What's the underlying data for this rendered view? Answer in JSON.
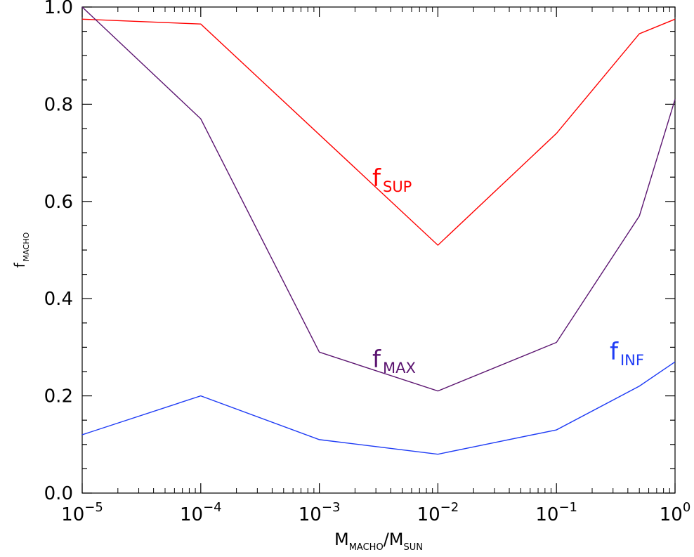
{
  "chart_data": {
    "type": "line",
    "title": "",
    "xlabel": {
      "main": "M",
      "main_sub": "MACHO",
      "slash": "/",
      "den": "M",
      "den_sub": "SUN"
    },
    "ylabel": {
      "main": "f",
      "sub": "MACHO"
    },
    "x_scale": "log",
    "xlim": [
      1e-05,
      1
    ],
    "ylim": [
      0,
      1.0
    ],
    "grid": false,
    "x_ticks": [
      {
        "value": 1e-05,
        "base": "10",
        "exp": "−5"
      },
      {
        "value": 0.0001,
        "base": "10",
        "exp": "−4"
      },
      {
        "value": 0.001,
        "base": "10",
        "exp": "−3"
      },
      {
        "value": 0.01,
        "base": "10",
        "exp": "−2"
      },
      {
        "value": 0.1,
        "base": "10",
        "exp": "−1"
      },
      {
        "value": 1,
        "base": "10",
        "exp": "0"
      }
    ],
    "y_ticks": [
      {
        "value": 0.0,
        "label": "0.0"
      },
      {
        "value": 0.2,
        "label": "0.2"
      },
      {
        "value": 0.4,
        "label": "0.4"
      },
      {
        "value": 0.6,
        "label": "0.6"
      },
      {
        "value": 0.8,
        "label": "0.8"
      },
      {
        "value": 1.0,
        "label": "1.0"
      }
    ],
    "y_minor_step": 0.05,
    "series": [
      {
        "key": "sup",
        "label_main": "f",
        "label_sub": "SUP",
        "color": "#ff0000",
        "points": [
          [
            1e-05,
            0.975
          ],
          [
            0.0001,
            0.965
          ],
          [
            0.01,
            0.51
          ],
          [
            0.1,
            0.74
          ],
          [
            0.5,
            0.945
          ],
          [
            1,
            0.975
          ]
        ]
      },
      {
        "key": "max",
        "label_main": "f",
        "label_sub": "MAX",
        "color": "#5b1470",
        "points": [
          [
            1e-05,
            1.0
          ],
          [
            0.0001,
            0.77
          ],
          [
            0.001,
            0.29
          ],
          [
            0.01,
            0.21
          ],
          [
            0.1,
            0.31
          ],
          [
            0.5,
            0.57
          ],
          [
            1,
            0.81
          ]
        ]
      },
      {
        "key": "inf",
        "label_main": "f",
        "label_sub": "INF",
        "color": "#1f3cf5",
        "points": [
          [
            1e-05,
            0.12
          ],
          [
            0.0001,
            0.2
          ],
          [
            0.001,
            0.11
          ],
          [
            0.01,
            0.08
          ],
          [
            0.1,
            0.13
          ],
          [
            0.5,
            0.22
          ],
          [
            1,
            0.27
          ]
        ]
      }
    ]
  }
}
